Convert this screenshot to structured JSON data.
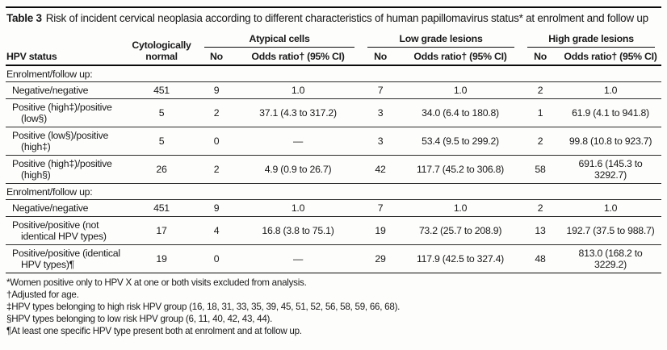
{
  "title": {
    "label": "Table 3",
    "caption": "Risk of incident cervical neoplasia according to different characteristics of human papillomavirus status* at enrolment and follow up"
  },
  "table": {
    "row_header": "HPV status",
    "cyto_header": "Cytologically normal",
    "groups": [
      {
        "label": "Atypical cells",
        "no_header": "No",
        "or_header": "Odds ratio† (95% CI)"
      },
      {
        "label": "Low grade lesions",
        "no_header": "No",
        "or_header": "Odds ratio† (95% CI)"
      },
      {
        "label": "High grade lesions",
        "no_header": "No",
        "or_header": "Odds ratio† (95% CI)"
      }
    ],
    "sections": [
      {
        "header": "Enrolment/follow up:",
        "rows": [
          {
            "label": "Negative/negative",
            "cells": [
              "451",
              "9",
              "1.0",
              "7",
              "1.0",
              "2",
              "1.0"
            ]
          },
          {
            "label": "Positive (high‡)/positive (low§)",
            "cells": [
              "5",
              "2",
              "37.1 (4.3 to 317.2)",
              "3",
              "34.0 (6.4 to 180.8)",
              "1",
              "61.9 (4.1 to 941.8)"
            ]
          },
          {
            "label": "Positive (low§)/positive (high‡)",
            "cells": [
              "5",
              "0",
              "—",
              "3",
              "53.4 (9.5 to 299.2)",
              "2",
              "99.8 (10.8 to 923.7)"
            ]
          },
          {
            "label": "Positive (high‡)/positive (high§)",
            "cells": [
              "26",
              "2",
              "4.9 (0.9 to 26.7)",
              "42",
              "117.7 (45.2 to 306.8)",
              "58",
              "691.6 (145.3 to 3292.7)"
            ]
          }
        ]
      },
      {
        "header": "Enrolment/follow up:",
        "rows": [
          {
            "label": "Negative/negative",
            "cells": [
              "451",
              "9",
              "1.0",
              "7",
              "1.0",
              "2",
              "1.0"
            ]
          },
          {
            "label": "Positive/positive (not identical HPV types)",
            "cells": [
              "17",
              "4",
              "16.8 (3.8 to 75.1)",
              "19",
              "73.2 (25.7 to 208.9)",
              "13",
              "192.7 (37.5 to 988.7)"
            ]
          },
          {
            "label": "Positive/positive (identical HPV types)¶",
            "cells": [
              "19",
              "0",
              "—",
              "29",
              "117.9 (42.5 to 327.4)",
              "48",
              "813.0 (168.2 to 3229.2)"
            ]
          }
        ]
      }
    ]
  },
  "footnotes": [
    "*Women positive only to HPV X at one or both visits excluded from analysis.",
    "†Adjusted for age.",
    "‡HPV types belonging to high risk HPV group (16, 18, 31, 33, 35, 39, 45, 51, 52, 56, 58, 59, 66, 68).",
    "§HPV types belonging to low risk HPV group (6, 11, 40, 42, 43, 44).",
    "¶At least one specific HPV type present both at enrolment and at follow up."
  ]
}
